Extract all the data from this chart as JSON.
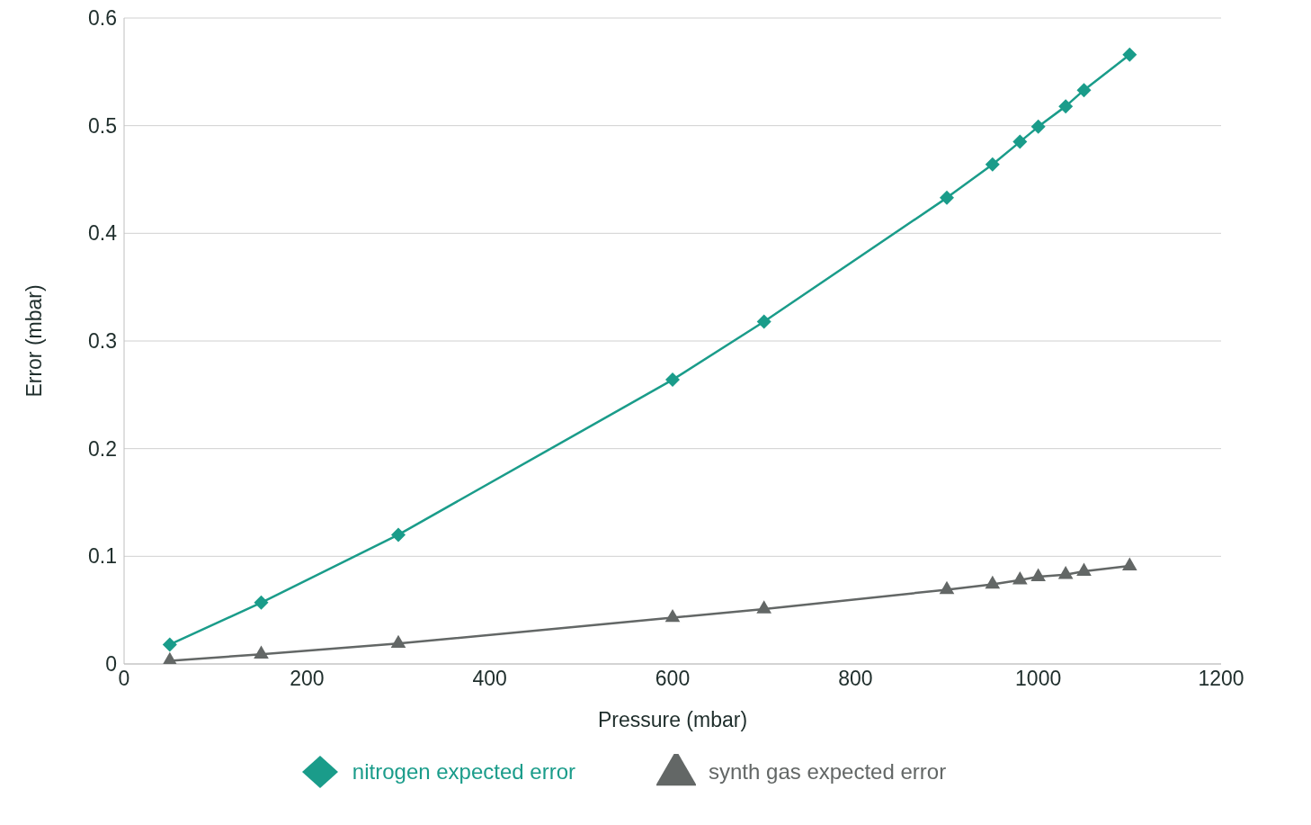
{
  "chart_data": {
    "type": "line",
    "xlabel": "Pressure (mbar)",
    "ylabel": "Error (mbar)",
    "x": [
      50,
      150,
      300,
      600,
      700,
      900,
      950,
      980,
      1000,
      1030,
      1050,
      1100
    ],
    "series": [
      {
        "name": "nitrogen expected error",
        "color": "#1a9c8a",
        "marker": "diamond",
        "values": [
          0.018,
          0.057,
          0.12,
          0.264,
          0.318,
          0.433,
          0.464,
          0.485,
          0.499,
          0.518,
          0.533,
          0.566
        ]
      },
      {
        "name": "synth gas expected error",
        "color": "#636766",
        "marker": "triangle",
        "values": [
          0.003,
          0.009,
          0.019,
          0.043,
          0.051,
          0.069,
          0.074,
          0.078,
          0.081,
          0.083,
          0.086,
          0.091
        ]
      }
    ],
    "xlim": [
      0,
      1200
    ],
    "xticks": [
      0,
      200,
      400,
      600,
      800,
      1000,
      1200
    ],
    "ylim": [
      0,
      0.6
    ],
    "yticks": [
      0,
      0.1,
      0.2,
      0.3,
      0.4,
      0.5,
      0.6
    ],
    "grid": "y",
    "legend": "bottom",
    "line_style": "solid"
  }
}
